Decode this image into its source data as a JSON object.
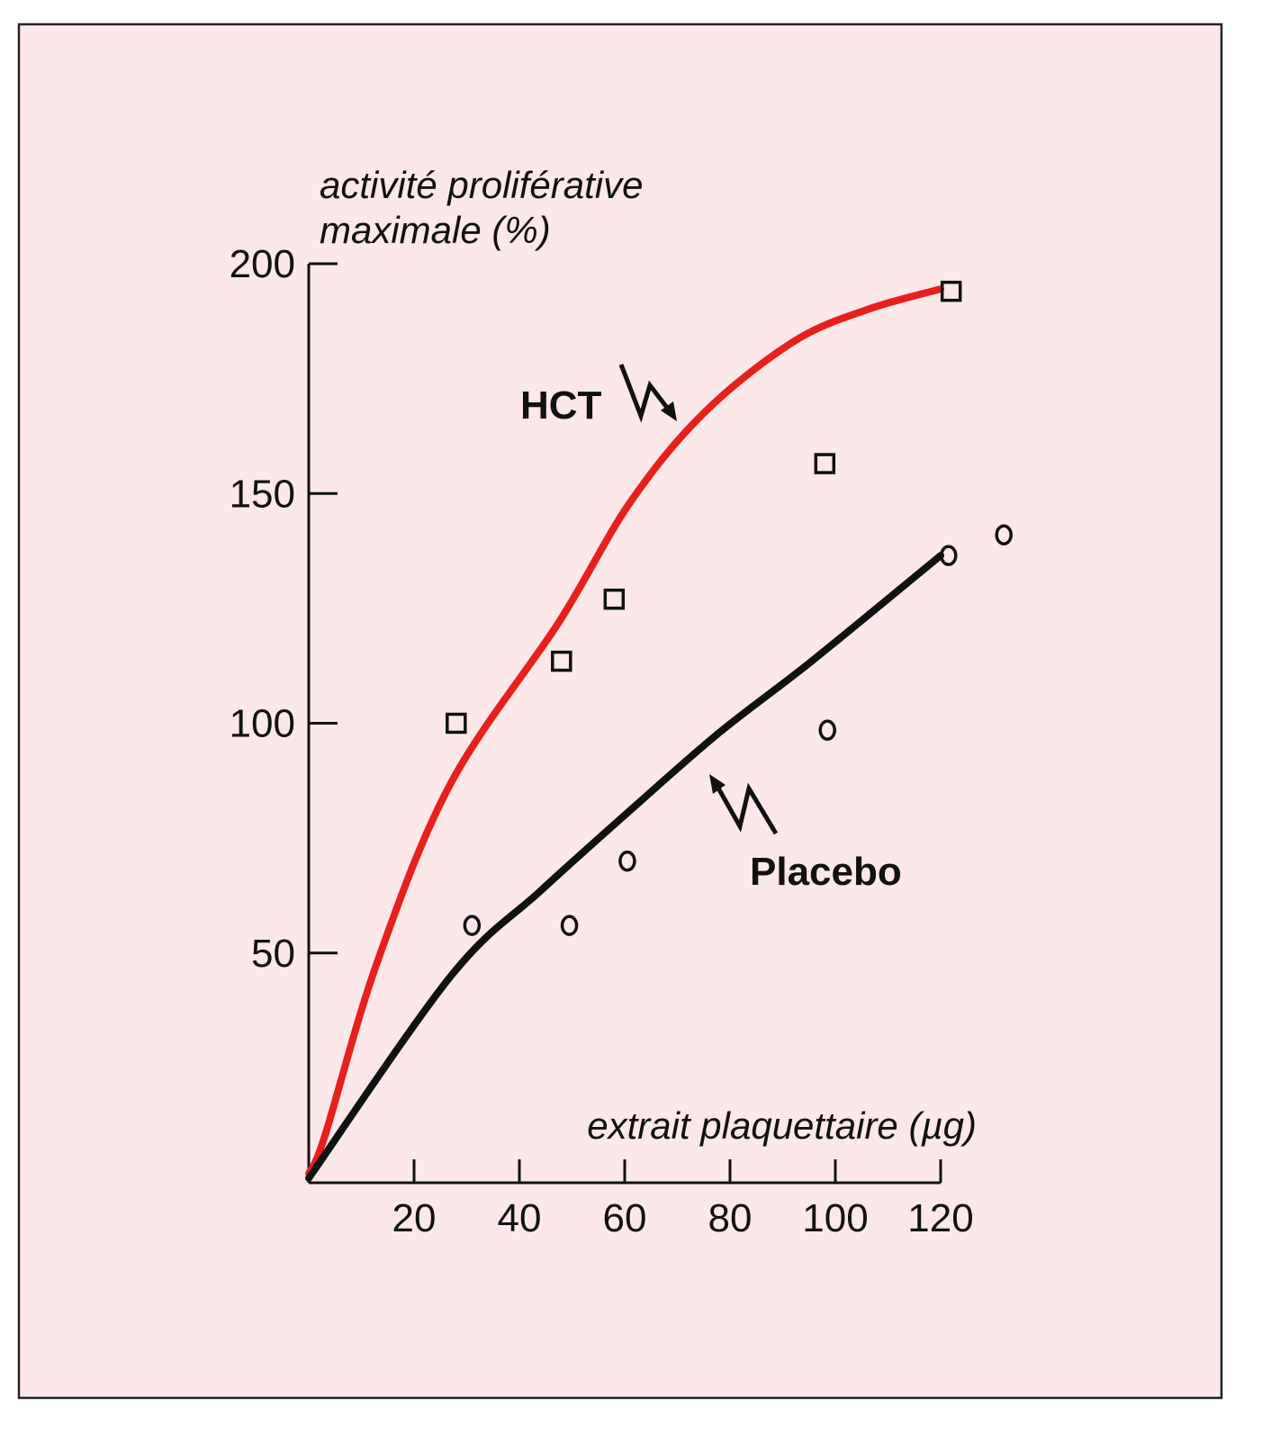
{
  "chart_data": {
    "type": "line",
    "title": "",
    "ylabel": [
      "activité proliférative",
      "maximale (%)"
    ],
    "xlabel": "extrait plaquettaire (µg)",
    "xlim": [
      0,
      120
    ],
    "ylim": [
      0,
      200
    ],
    "xticks": [
      20,
      40,
      60,
      80,
      100,
      120
    ],
    "yticks": [
      50,
      100,
      150,
      200
    ],
    "grid": false,
    "colors": {
      "background": "#fce8e8",
      "hct": "#e8201c",
      "placebo": "#111111"
    },
    "series": [
      {
        "name": "HCT",
        "marker": "square",
        "points": [
          [
            28,
            100
          ],
          [
            48,
            113.5
          ],
          [
            58,
            127
          ],
          [
            98,
            156.5
          ],
          [
            122,
            194
          ]
        ],
        "curve": [
          [
            0,
            2
          ],
          [
            3,
            10
          ],
          [
            13,
            48
          ],
          [
            27,
            87
          ],
          [
            47.5,
            122
          ],
          [
            61,
            148
          ],
          [
            75,
            167.5
          ],
          [
            92,
            183
          ],
          [
            106,
            190
          ],
          [
            120,
            194.5
          ]
        ]
      },
      {
        "name": "Placebo",
        "marker": "circle",
        "points": [
          [
            31,
            56
          ],
          [
            49.5,
            56
          ],
          [
            60.5,
            70
          ],
          [
            98.5,
            98.5
          ],
          [
            121.5,
            136.5
          ],
          [
            132,
            141
          ]
        ],
        "curve": [
          [
            0,
            1
          ],
          [
            27,
            45
          ],
          [
            44,
            63.5
          ],
          [
            61,
            81
          ],
          [
            78,
            98
          ],
          [
            95.5,
            113.5
          ],
          [
            120,
            136.5
          ]
        ]
      }
    ],
    "annotations": [
      {
        "text": "HCT",
        "series": "HCT"
      },
      {
        "text": "Placebo",
        "series": "Placebo"
      }
    ]
  }
}
